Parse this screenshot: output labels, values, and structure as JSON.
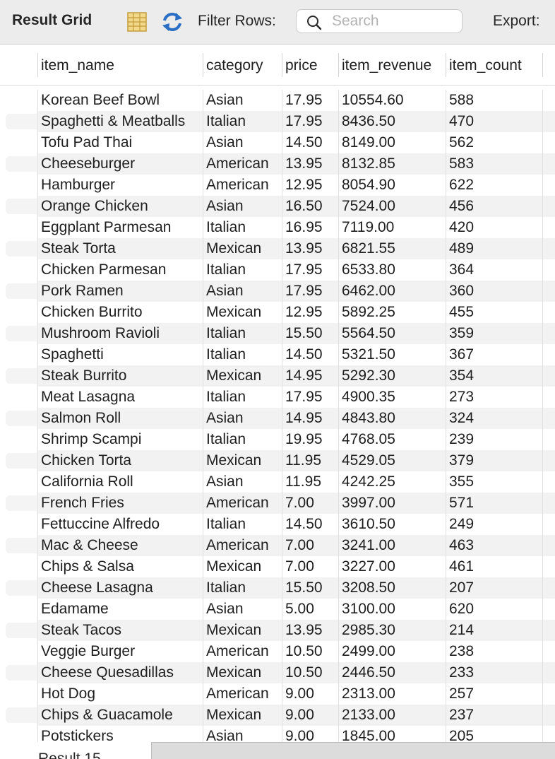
{
  "toolbar": {
    "title": "Result Grid",
    "filter_label": "Filter Rows:",
    "search_placeholder": "Search",
    "search_value": "",
    "export_label": "Export:"
  },
  "columns": [
    "item_name",
    "category",
    "price",
    "item_revenue",
    "item_count"
  ],
  "rows": [
    [
      "Korean Beef Bowl",
      "Asian",
      "17.95",
      "10554.60",
      "588"
    ],
    [
      "Spaghetti & Meatballs",
      "Italian",
      "17.95",
      "8436.50",
      "470"
    ],
    [
      "Tofu Pad Thai",
      "Asian",
      "14.50",
      "8149.00",
      "562"
    ],
    [
      "Cheeseburger",
      "American",
      "13.95",
      "8132.85",
      "583"
    ],
    [
      "Hamburger",
      "American",
      "12.95",
      "8054.90",
      "622"
    ],
    [
      "Orange Chicken",
      "Asian",
      "16.50",
      "7524.00",
      "456"
    ],
    [
      "Eggplant Parmesan",
      "Italian",
      "16.95",
      "7119.00",
      "420"
    ],
    [
      "Steak Torta",
      "Mexican",
      "13.95",
      "6821.55",
      "489"
    ],
    [
      "Chicken Parmesan",
      "Italian",
      "17.95",
      "6533.80",
      "364"
    ],
    [
      "Pork Ramen",
      "Asian",
      "17.95",
      "6462.00",
      "360"
    ],
    [
      "Chicken Burrito",
      "Mexican",
      "12.95",
      "5892.25",
      "455"
    ],
    [
      "Mushroom Ravioli",
      "Italian",
      "15.50",
      "5564.50",
      "359"
    ],
    [
      "Spaghetti",
      "Italian",
      "14.50",
      "5321.50",
      "367"
    ],
    [
      "Steak Burrito",
      "Mexican",
      "14.95",
      "5292.30",
      "354"
    ],
    [
      "Meat Lasagna",
      "Italian",
      "17.95",
      "4900.35",
      "273"
    ],
    [
      "Salmon Roll",
      "Asian",
      "14.95",
      "4843.80",
      "324"
    ],
    [
      "Shrimp Scampi",
      "Italian",
      "19.95",
      "4768.05",
      "239"
    ],
    [
      "Chicken Torta",
      "Mexican",
      "11.95",
      "4529.05",
      "379"
    ],
    [
      "California Roll",
      "Asian",
      "11.95",
      "4242.25",
      "355"
    ],
    [
      "French Fries",
      "American",
      "7.00",
      "3997.00",
      "571"
    ],
    [
      "Fettuccine Alfredo",
      "Italian",
      "14.50",
      "3610.50",
      "249"
    ],
    [
      "Mac & Cheese",
      "American",
      "7.00",
      "3241.00",
      "463"
    ],
    [
      "Chips & Salsa",
      "Mexican",
      "7.00",
      "3227.00",
      "461"
    ],
    [
      "Cheese Lasagna",
      "Italian",
      "15.50",
      "3208.50",
      "207"
    ],
    [
      "Edamame",
      "Asian",
      "5.00",
      "3100.00",
      "620"
    ],
    [
      "Steak Tacos",
      "Mexican",
      "13.95",
      "2985.30",
      "214"
    ],
    [
      "Veggie Burger",
      "American",
      "10.50",
      "2499.00",
      "238"
    ],
    [
      "Cheese Quesadillas",
      "Mexican",
      "10.50",
      "2446.50",
      "233"
    ],
    [
      "Hot Dog",
      "American",
      "9.00",
      "2313.00",
      "257"
    ],
    [
      "Chips & Guacamole",
      "Mexican",
      "9.00",
      "2133.00",
      "237"
    ],
    [
      "Potstickers",
      "Asian",
      "9.00",
      "1845.00",
      "205"
    ]
  ],
  "bottom": {
    "result_tab_label": "Result 15"
  }
}
